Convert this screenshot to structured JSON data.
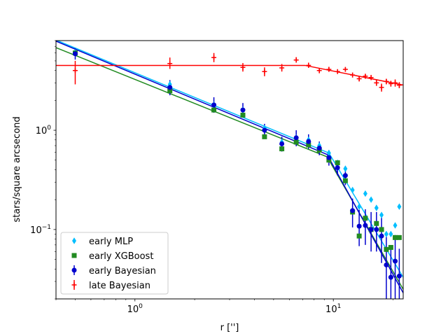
{
  "chart_data": {
    "type": "scatter",
    "title": "",
    "xlabel": "r ['']",
    "ylabel": "stars/square arcsecond",
    "xscale": "log",
    "yscale": "log",
    "xlim": [
      0.4,
      22.5
    ],
    "ylim": [
      0.02,
      8.0
    ],
    "x_major_ticks": [
      {
        "value": 1,
        "base": "10",
        "exp": "0"
      },
      {
        "value": 10,
        "base": "10",
        "exp": "1"
      }
    ],
    "y_major_ticks": [
      {
        "value": 0.1,
        "base": "10",
        "exp": "−1"
      },
      {
        "value": 1,
        "base": "10",
        "exp": "0"
      }
    ],
    "legend_location": "lower-left",
    "series": [
      {
        "name": "early MLP",
        "color": "#00bfff",
        "marker": "diamond",
        "x": [
          0.5,
          1.5,
          2.5,
          3.5,
          4.5,
          5.5,
          6.5,
          7.5,
          8.5,
          9.5,
          10.5,
          11.5,
          12.5,
          13.5,
          14.5,
          15.5,
          16.5,
          17.5,
          18.5,
          19.5,
          20.5,
          21.5
        ],
        "y": [
          6.1,
          2.9,
          1.8,
          1.6,
          1.05,
          0.76,
          0.84,
          0.8,
          0.7,
          0.59,
          0.47,
          0.41,
          0.25,
          0.17,
          0.23,
          0.2,
          0.165,
          0.14,
          0.09,
          0.09,
          0.11,
          0.17
        ],
        "fit": {
          "x": [
            0.4,
            9.5,
            22.5
          ],
          "y": [
            8.1,
            0.59,
            0.033
          ]
        }
      },
      {
        "name": "early XGBoost",
        "color": "#228b22",
        "marker": "square",
        "x": [
          0.5,
          1.5,
          2.5,
          3.5,
          4.5,
          5.5,
          6.5,
          7.5,
          8.5,
          9.5,
          10.5,
          11.5,
          12.5,
          13.5,
          14.5,
          15.5,
          16.5,
          17.5,
          18.5,
          19.5,
          20.5,
          21.5
        ],
        "y": [
          6.0,
          2.5,
          1.6,
          1.42,
          0.86,
          0.65,
          0.76,
          0.71,
          0.63,
          0.5,
          0.47,
          0.31,
          0.15,
          0.086,
          0.13,
          0.1,
          0.115,
          0.1,
          0.063,
          0.066,
          0.083,
          0.083
        ],
        "fit": {
          "x": [
            0.4,
            9.3,
            22.5
          ],
          "y": [
            6.8,
            0.54,
            0.025
          ]
        }
      },
      {
        "name": "early Bayesian",
        "color": "#0000cd",
        "marker": "circle",
        "x": [
          0.5,
          1.5,
          2.5,
          3.5,
          4.5,
          5.5,
          6.5,
          7.5,
          8.5,
          9.5,
          10.5,
          11.5,
          12.5,
          13.5,
          14.5,
          15.5,
          16.5,
          17.5,
          18.5,
          19.5,
          20.5,
          21.5
        ],
        "y": [
          5.9,
          2.7,
          1.8,
          1.6,
          1.0,
          0.73,
          0.84,
          0.77,
          0.66,
          0.53,
          0.42,
          0.35,
          0.155,
          0.108,
          0.11,
          0.1,
          0.1,
          0.086,
          0.044,
          0.033,
          0.048,
          0.034
        ],
        "yerr_lo": [
          0.75,
          0.45,
          0.3,
          0.25,
          0.15,
          0.12,
          0.15,
          0.12,
          0.1,
          0.09,
          0.07,
          0.07,
          0.05,
          0.04,
          0.04,
          0.04,
          0.04,
          0.04,
          0.03,
          0.025,
          0.03,
          0.02
        ],
        "yerr_hi": [
          0.8,
          0.5,
          0.35,
          0.28,
          0.16,
          0.13,
          0.16,
          0.14,
          0.11,
          0.1,
          0.08,
          0.08,
          0.05,
          0.05,
          0.05,
          0.05,
          0.05,
          0.045,
          0.04,
          0.03,
          0.04,
          0.03
        ],
        "fit": {
          "x": [
            0.4,
            9.3,
            22.5
          ],
          "y": [
            7.9,
            0.57,
            0.023
          ]
        }
      },
      {
        "name": "late Bayesian",
        "color": "#ff0000",
        "marker": "plus",
        "x": [
          0.5,
          1.5,
          2.5,
          3.5,
          4.5,
          5.5,
          6.5,
          7.5,
          8.5,
          9.5,
          10.5,
          11.5,
          12.5,
          13.5,
          14.5,
          15.5,
          16.5,
          17.5,
          18.5,
          19.5,
          20.5,
          21.5
        ],
        "y": [
          4.0,
          4.7,
          5.4,
          4.3,
          3.9,
          4.25,
          5.1,
          4.5,
          4.0,
          4.1,
          3.9,
          4.1,
          3.6,
          3.3,
          3.5,
          3.4,
          3.0,
          2.7,
          3.1,
          2.95,
          3.0,
          2.85
        ],
        "yerr_lo": [
          1.1,
          0.55,
          0.55,
          0.4,
          0.4,
          0.35,
          0.3,
          0.25,
          0.25,
          0.2,
          0.2,
          0.2,
          0.2,
          0.2,
          0.2,
          0.2,
          0.2,
          0.25,
          0.2,
          0.2,
          0.25,
          0.2
        ],
        "yerr_hi": [
          1.0,
          0.7,
          0.6,
          0.45,
          0.4,
          0.4,
          0.35,
          0.3,
          0.25,
          0.25,
          0.2,
          0.2,
          0.2,
          0.2,
          0.2,
          0.2,
          0.2,
          0.25,
          0.2,
          0.2,
          0.25,
          0.2
        ],
        "fit": {
          "x": [
            0.4,
            7.2,
            22.5
          ],
          "y": [
            4.5,
            4.5,
            2.85
          ]
        }
      }
    ]
  }
}
